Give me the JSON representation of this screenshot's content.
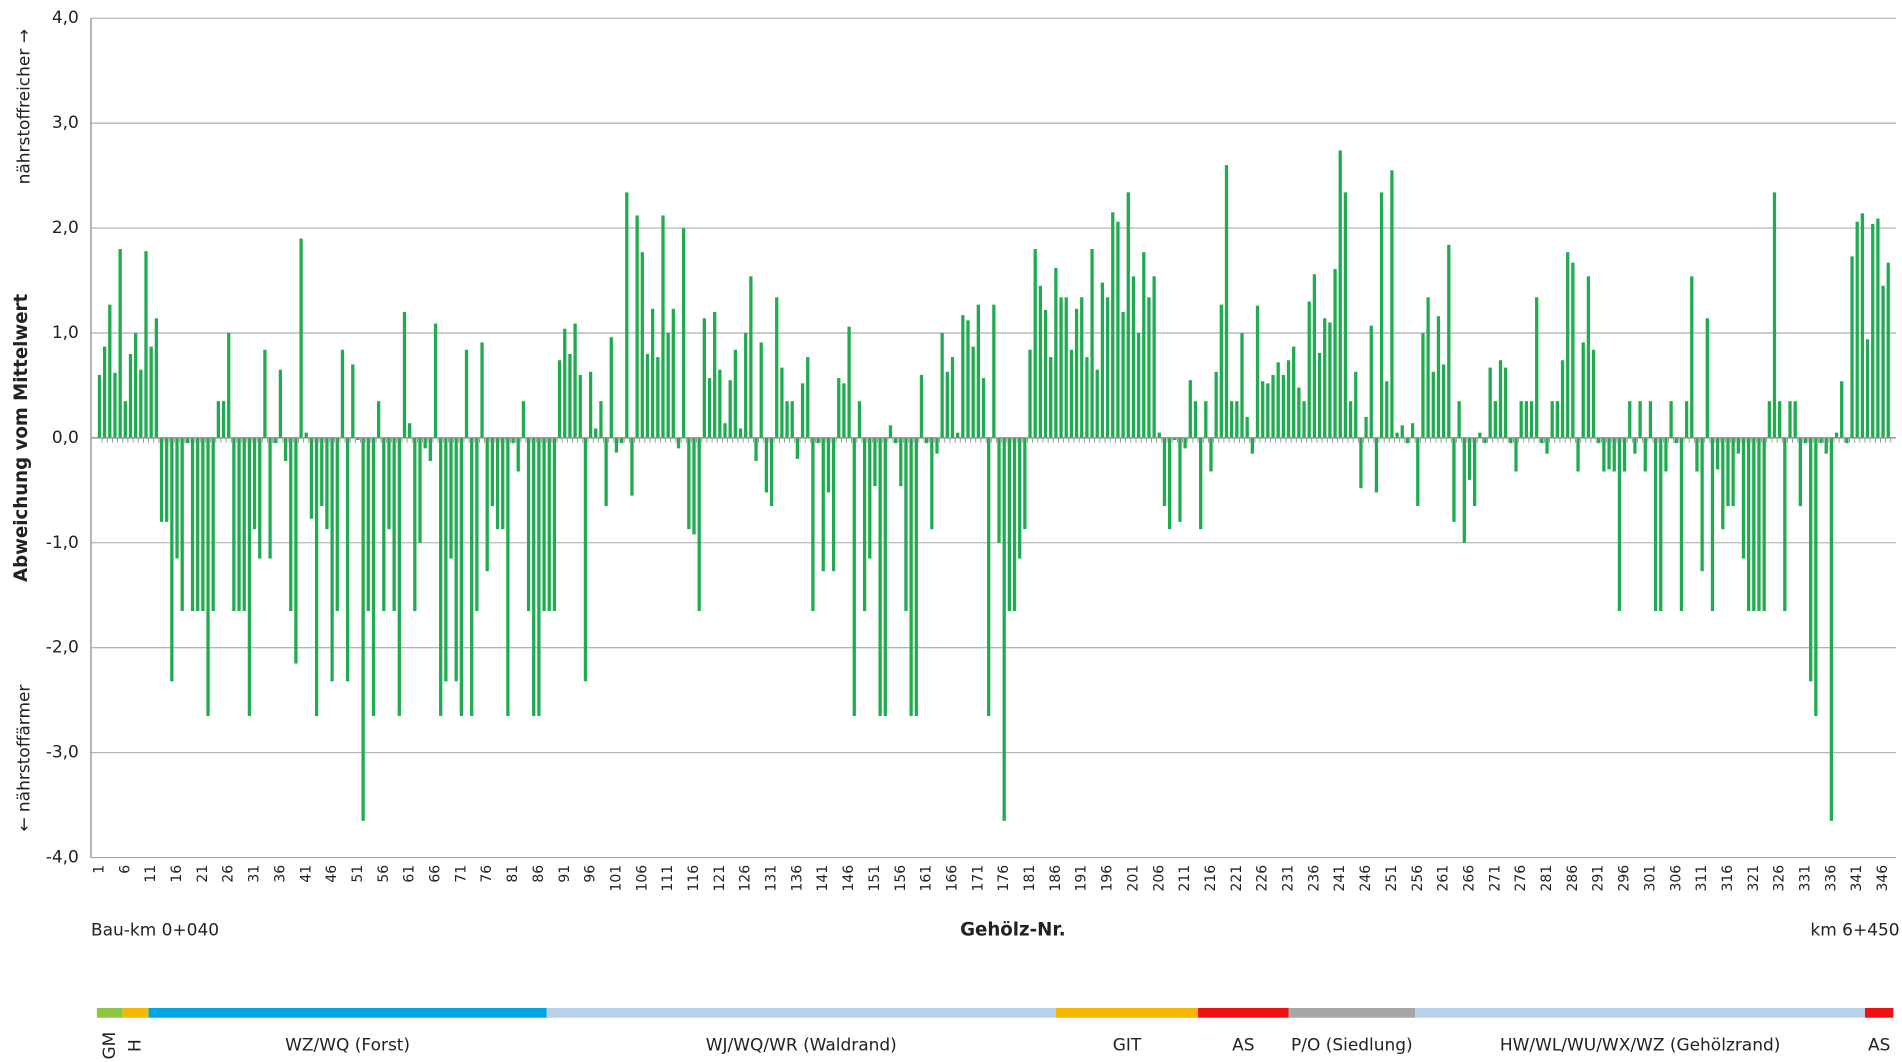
{
  "chart_data": {
    "type": "bar",
    "y_label": "Abweichung vom Mittelwert",
    "y_top_label": "nährstoffreicher →",
    "y_bottom_label": "← nährstoffärmer",
    "x_label": "Gehölz-Nr.",
    "x_left_label": "Bau-km 0+040",
    "x_right_label": "km 6+450",
    "color": "#1fab4f",
    "ylim": [
      -4,
      4
    ],
    "yticks": [
      {
        "value": -4,
        "label": "-4,0"
      },
      {
        "value": -3,
        "label": "-3,0"
      },
      {
        "value": -2,
        "label": "-2,0"
      },
      {
        "value": -1,
        "label": "-1,0"
      },
      {
        "value": 0,
        "label": "0,0"
      },
      {
        "value": 1,
        "label": "1,0"
      },
      {
        "value": 2,
        "label": "2,0"
      },
      {
        "value": 3,
        "label": "3,0"
      },
      {
        "value": 4,
        "label": "4,0"
      }
    ],
    "grid": true,
    "label_every": 5,
    "values": [
      0.6,
      0.87,
      1.27,
      0.62,
      1.8,
      0.35,
      0.8,
      1.0,
      0.65,
      1.78,
      0.87,
      1.14,
      -0.8,
      -0.8,
      -2.32,
      -1.15,
      -1.65,
      -0.05,
      -1.65,
      -1.65,
      -1.65,
      -2.65,
      -1.65,
      0.35,
      0.35,
      1.0,
      -1.65,
      -1.65,
      -1.65,
      -2.65,
      -0.87,
      -1.15,
      0.84,
      -1.15,
      -0.05,
      0.65,
      -0.22,
      -1.65,
      -2.15,
      1.9,
      0.05,
      -0.77,
      -2.65,
      -0.65,
      -0.87,
      -2.32,
      -1.65,
      0.84,
      -2.32,
      0.7,
      -0.02,
      -3.65,
      -1.65,
      -2.65,
      0.35,
      -1.65,
      -0.87,
      -1.65,
      -2.65,
      1.2,
      0.14,
      -1.65,
      -1.0,
      -0.1,
      -0.22,
      1.09,
      -2.65,
      -2.32,
      -1.15,
      -2.32,
      -2.65,
      0.84,
      -2.65,
      -1.65,
      0.91,
      -1.27,
      -0.65,
      -0.87,
      -0.87,
      -2.65,
      -0.05,
      -0.32,
      0.35,
      -1.65,
      -2.65,
      -2.65,
      -1.65,
      -1.65,
      -1.65,
      0.74,
      1.04,
      0.8,
      1.09,
      0.6,
      -2.32,
      0.63,
      0.09,
      0.35,
      -0.65,
      0.96,
      -0.14,
      -0.05,
      2.34,
      -0.55,
      2.12,
      1.77,
      0.8,
      1.23,
      0.77,
      2.12,
      1.0,
      1.23,
      -0.1,
      2.0,
      -0.87,
      -0.92,
      -1.65,
      1.14,
      0.57,
      1.2,
      0.65,
      0.14,
      0.55,
      0.84,
      0.09,
      1.0,
      1.54,
      -0.22,
      0.91,
      -0.52,
      -0.65,
      1.34,
      0.67,
      0.35,
      0.35,
      -0.2,
      0.52,
      0.77,
      -1.65,
      -0.05,
      -1.27,
      -0.52,
      -1.27,
      0.57,
      0.52,
      1.06,
      -2.65,
      0.35,
      -1.65,
      -1.15,
      -0.46,
      -2.65,
      -2.65,
      0.12,
      -0.05,
      -0.46,
      -1.65,
      -2.65,
      -2.65,
      0.6,
      -0.05,
      -0.87,
      -0.15,
      1.0,
      0.63,
      0.77,
      0.05,
      1.17,
      1.12,
      0.87,
      1.27,
      0.57,
      -2.65,
      1.27,
      -1.0,
      -3.65,
      -1.65,
      -1.65,
      -1.15,
      -0.87,
      0.84,
      1.8,
      1.45,
      1.22,
      0.77,
      1.62,
      1.34,
      1.34,
      0.84,
      1.23,
      1.34,
      0.77,
      1.8,
      0.65,
      1.48,
      1.34,
      2.15,
      2.06,
      1.2,
      2.34,
      1.54,
      1.0,
      1.77,
      1.34,
      1.54,
      0.05,
      -0.65,
      -0.87,
      -0.02,
      -0.8,
      -0.1,
      0.55,
      0.35,
      -0.87,
      0.35,
      -0.32,
      0.63,
      1.27,
      2.6,
      0.35,
      0.35,
      1.0,
      0.2,
      -0.15,
      1.26,
      0.54,
      0.52,
      0.6,
      0.72,
      0.6,
      0.74,
      0.87,
      0.48,
      0.35,
      1.3,
      1.56,
      0.81,
      1.14,
      1.1,
      1.61,
      2.74,
      2.34,
      0.35,
      0.63,
      -0.48,
      0.2,
      1.07,
      -0.52,
      2.34,
      0.54,
      2.55,
      0.05,
      0.12,
      -0.05,
      0.14,
      -0.65,
      1.0,
      1.34,
      0.63,
      1.16,
      0.7,
      1.84,
      -0.8,
      0.35,
      -1.0,
      -0.4,
      -0.65,
      0.05,
      -0.05,
      0.67,
      0.35,
      0.74,
      0.67,
      -0.05,
      -0.32,
      0.35,
      0.35,
      0.35,
      1.34,
      -0.05,
      -0.15,
      0.35,
      0.35,
      0.74,
      1.77,
      1.67,
      -0.32,
      0.91,
      1.54,
      0.84,
      -0.05,
      -0.32,
      -0.3,
      -0.32,
      -1.65,
      -0.32,
      0.35,
      -0.15,
      0.35,
      -0.32,
      0.35,
      -1.65,
      -1.65,
      -0.32,
      0.35,
      -0.05,
      -1.65,
      0.35,
      1.54,
      -0.32,
      -1.27,
      1.14,
      -1.65,
      -0.3,
      -0.87,
      -0.65,
      -0.65,
      -0.15,
      -1.15,
      -1.65,
      -1.65,
      -1.65,
      -1.65,
      0.35,
      2.34,
      0.35,
      -1.65,
      0.35,
      0.35,
      -0.65,
      -0.05,
      -2.32,
      -2.65,
      -0.05,
      -0.15,
      -3.65,
      0.05,
      0.54,
      -0.05,
      1.73,
      2.06,
      2.14,
      0.94,
      2.04,
      2.09,
      1.45,
      1.67
    ],
    "zones": [
      {
        "label": "GM",
        "color": "#8dc63f",
        "from": 0,
        "to": 5,
        "vertical": true
      },
      {
        "label": "H",
        "color": "#f6b800",
        "from": 5,
        "to": 10,
        "vertical": true
      },
      {
        "label": "WZ/WQ (Forst)",
        "color": "#00a6e4",
        "from": 10,
        "to": 87
      },
      {
        "label": "WJ/WQ/WR (Waldrand)",
        "color": "#b8d2ec",
        "from": 87,
        "to": 185.5
      },
      {
        "label": "GIT",
        "color": "#f6b800",
        "from": 185.5,
        "to": 213
      },
      {
        "label": "AS",
        "color": "#ee1111",
        "from": 213,
        "to": 230.5
      },
      {
        "label": "P/O (Siedlung)",
        "color": "#a6a6a6",
        "from": 230.5,
        "to": 255
      },
      {
        "label": "HW/WL/WU/WX/WZ (Gehölzrand)",
        "color": "#b8d2ec",
        "from": 255,
        "to": 342
      },
      {
        "label": "AS",
        "color": "#ee1111",
        "from": 342,
        "to": 347.5
      }
    ]
  }
}
